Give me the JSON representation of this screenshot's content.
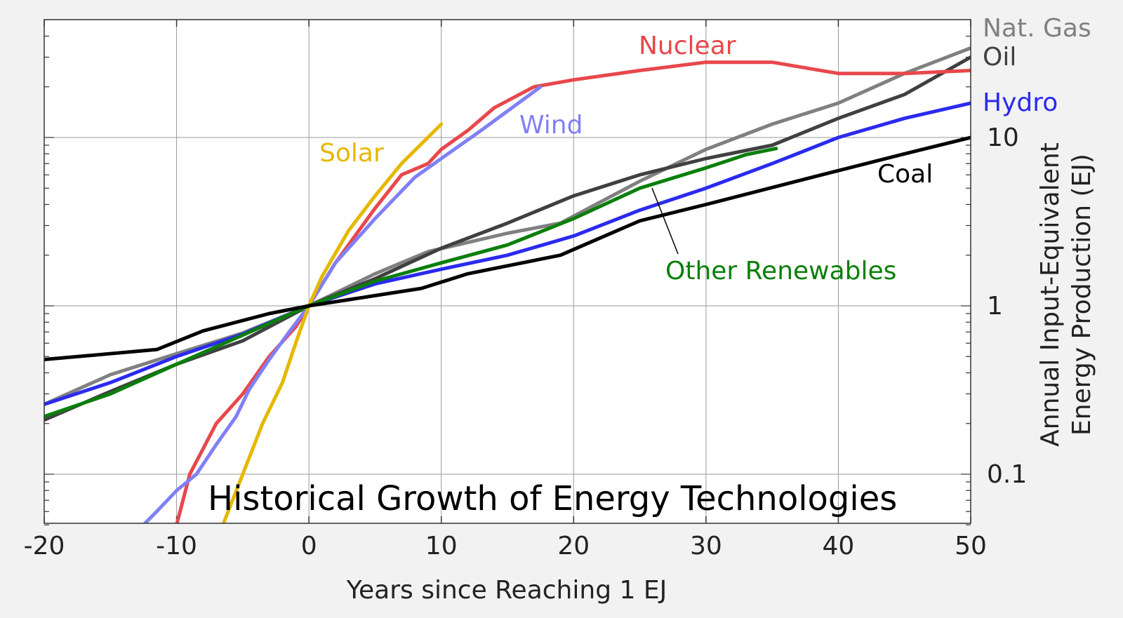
{
  "chart_data": {
    "type": "line",
    "title": "Historical Growth of Energy Technologies",
    "xlabel": "Years since Reaching 1 EJ",
    "ylabel_line1": "Annual Input-Equivalent",
    "ylabel_line2": "Energy Production (EJ)",
    "y_scale": "log",
    "xlim": [
      -20,
      50
    ],
    "ylim": [
      0.05,
      45
    ],
    "grid": true,
    "x_ticks": [
      -20,
      -10,
      0,
      10,
      20,
      30,
      40,
      50
    ],
    "x_tick_labels": [
      "-20",
      "-10",
      "0",
      "10",
      "20",
      "30",
      "40",
      "50"
    ],
    "y_ticks": [
      0.1,
      1,
      10
    ],
    "y_tick_labels": [
      "0.1",
      "1",
      "10"
    ],
    "annotation_other_renewables": "Other Renewables",
    "series": [
      {
        "name": "Nat. Gas",
        "color": "#808080",
        "width": 5,
        "x": [
          -20,
          -15,
          -10,
          -5,
          0,
          5,
          9,
          15,
          19,
          25,
          30,
          35,
          40,
          45,
          50
        ],
        "y": [
          0.26,
          0.39,
          0.52,
          0.69,
          1.0,
          1.55,
          2.1,
          2.7,
          3.1,
          5.5,
          8.5,
          12,
          16,
          24,
          34
        ]
      },
      {
        "name": "Oil",
        "color": "#404040",
        "width": 5,
        "x": [
          -20,
          -15,
          -10,
          -5,
          0,
          5,
          10,
          15,
          20,
          25,
          30,
          35,
          40,
          45,
          50
        ],
        "y": [
          0.21,
          0.31,
          0.45,
          0.62,
          1.0,
          1.45,
          2.2,
          3.1,
          4.5,
          6.0,
          7.5,
          9.0,
          13,
          18,
          30
        ]
      },
      {
        "name": "Nuclear",
        "color": "#e8474c",
        "width": 5,
        "x": [
          -10,
          -9,
          -7,
          -5,
          -3,
          -1,
          0,
          2,
          5,
          7,
          9,
          10,
          12,
          14,
          17,
          20,
          25,
          30,
          35,
          40,
          45,
          50
        ],
        "y": [
          0.05,
          0.1,
          0.2,
          0.3,
          0.5,
          0.75,
          1.0,
          1.8,
          3.8,
          6.0,
          7.0,
          8.5,
          11,
          15,
          20,
          22,
          25,
          28,
          28,
          24,
          24,
          25
        ]
      },
      {
        "name": "Wind",
        "color": "#8080f5",
        "width": 5,
        "x": [
          -12.5,
          -11.5,
          -10,
          -8.5,
          -7,
          -5.5,
          -4.5,
          -3,
          -1.5,
          0,
          2,
          5,
          8,
          10,
          13,
          17.5
        ],
        "y": [
          0.05,
          0.06,
          0.08,
          0.1,
          0.15,
          0.22,
          0.32,
          0.48,
          0.7,
          1.0,
          1.8,
          3.3,
          5.8,
          7.5,
          11,
          20
        ]
      },
      {
        "name": "Solar",
        "color": "#e6b800",
        "width": 5,
        "x": [
          -6.5,
          -5,
          -3.5,
          -2,
          -1,
          0,
          1,
          3,
          5,
          7,
          10
        ],
        "y": [
          0.05,
          0.1,
          0.2,
          0.35,
          0.6,
          1.0,
          1.5,
          2.8,
          4.5,
          7.0,
          12
        ]
      },
      {
        "name": "Hydro",
        "color": "#2a2af0",
        "width": 5,
        "x": [
          -20,
          -15,
          -10,
          -5,
          0,
          5,
          10,
          15,
          20,
          25,
          30,
          35,
          40,
          45,
          50
        ],
        "y": [
          0.26,
          0.35,
          0.5,
          0.68,
          1.0,
          1.35,
          1.65,
          2.0,
          2.6,
          3.7,
          5.0,
          7.0,
          10,
          13,
          16
        ]
      },
      {
        "name": "Other Renewables",
        "color": "#0a7f0a",
        "width": 5,
        "x": [
          -20,
          -15,
          -10,
          -5,
          0,
          5,
          10,
          15,
          20,
          25,
          30,
          33,
          35.3
        ],
        "y": [
          0.22,
          0.3,
          0.45,
          0.67,
          1.0,
          1.4,
          1.8,
          2.3,
          3.3,
          5.0,
          6.6,
          7.9,
          8.6
        ]
      },
      {
        "name": "Coal",
        "color": "#000000",
        "width": 5,
        "x": [
          -20,
          -11.5,
          -8,
          -3,
          0,
          5,
          8.5,
          12,
          19,
          25,
          30,
          38,
          45,
          50
        ],
        "y": [
          0.48,
          0.55,
          0.71,
          0.9,
          1.0,
          1.15,
          1.27,
          1.55,
          2.0,
          3.2,
          4.0,
          5.8,
          8.0,
          10
        ]
      }
    ],
    "series_labels": [
      {
        "text": "Nat. Gas",
        "color": "#808080"
      },
      {
        "text": "Oil",
        "color": "#404040"
      },
      {
        "text": "Nuclear",
        "color": "#e8474c"
      },
      {
        "text": "Wind",
        "color": "#8080f5"
      },
      {
        "text": "Solar",
        "color": "#e6b800"
      },
      {
        "text": "Hydro",
        "color": "#2a2af0"
      },
      {
        "text": "Other Renewables",
        "color": "#0a7f0a"
      },
      {
        "text": "Coal",
        "color": "#000000"
      }
    ]
  }
}
